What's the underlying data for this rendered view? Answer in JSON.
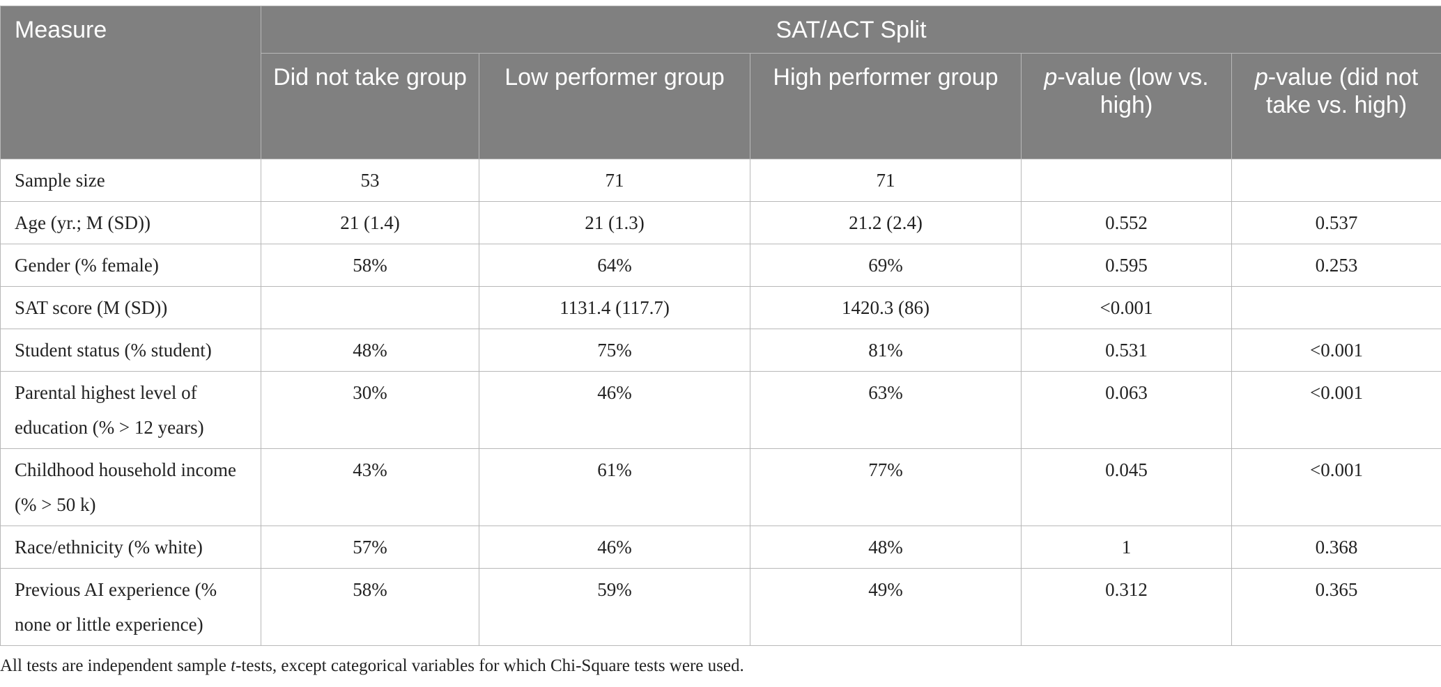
{
  "header": {
    "measure": "Measure",
    "split": "SAT/ACT Split",
    "columns": [
      {
        "pre": "",
        "italic": "",
        "post": "Did not take group"
      },
      {
        "pre": "",
        "italic": "",
        "post": "Low performer group"
      },
      {
        "pre": "",
        "italic": "",
        "post": "High performer group"
      },
      {
        "pre": "",
        "italic": "p",
        "post": "-value (low vs. high)"
      },
      {
        "pre": "",
        "italic": "p",
        "post": "-value (did not take vs. high)"
      }
    ]
  },
  "rows": [
    {
      "label": "Sample size",
      "values": [
        "53",
        "71",
        "71",
        "",
        ""
      ]
    },
    {
      "label": "Age (yr.; M (SD))",
      "values": [
        "21 (1.4)",
        "21 (1.3)",
        "21.2 (2.4)",
        "0.552",
        "0.537"
      ]
    },
    {
      "label": "Gender (% female)",
      "values": [
        "58%",
        "64%",
        "69%",
        "0.595",
        "0.253"
      ]
    },
    {
      "label": "SAT score (M (SD))",
      "values": [
        "",
        "1131.4 (117.7)",
        "1420.3 (86)",
        "<0.001",
        ""
      ]
    },
    {
      "label": "Student status (% student)",
      "values": [
        "48%",
        "75%",
        "81%",
        "0.531",
        "<0.001"
      ]
    },
    {
      "label": "Parental highest level of education (% > 12 years)",
      "values": [
        "30%",
        "46%",
        "63%",
        "0.063",
        "<0.001"
      ]
    },
    {
      "label": "Childhood household income (% > 50 k)",
      "values": [
        "43%",
        "61%",
        "77%",
        "0.045",
        "<0.001"
      ]
    },
    {
      "label": "Race/ethnicity (% white)",
      "values": [
        "57%",
        "46%",
        "48%",
        "1",
        "0.368"
      ]
    },
    {
      "label": "Previous AI experience (% none or little experience)",
      "values": [
        "58%",
        "59%",
        "49%",
        "0.312",
        "0.365"
      ]
    }
  ],
  "note": {
    "before": "All tests are independent sample ",
    "italic": "t",
    "after": "-tests, except categorical variables for which Chi-Square tests were used."
  }
}
